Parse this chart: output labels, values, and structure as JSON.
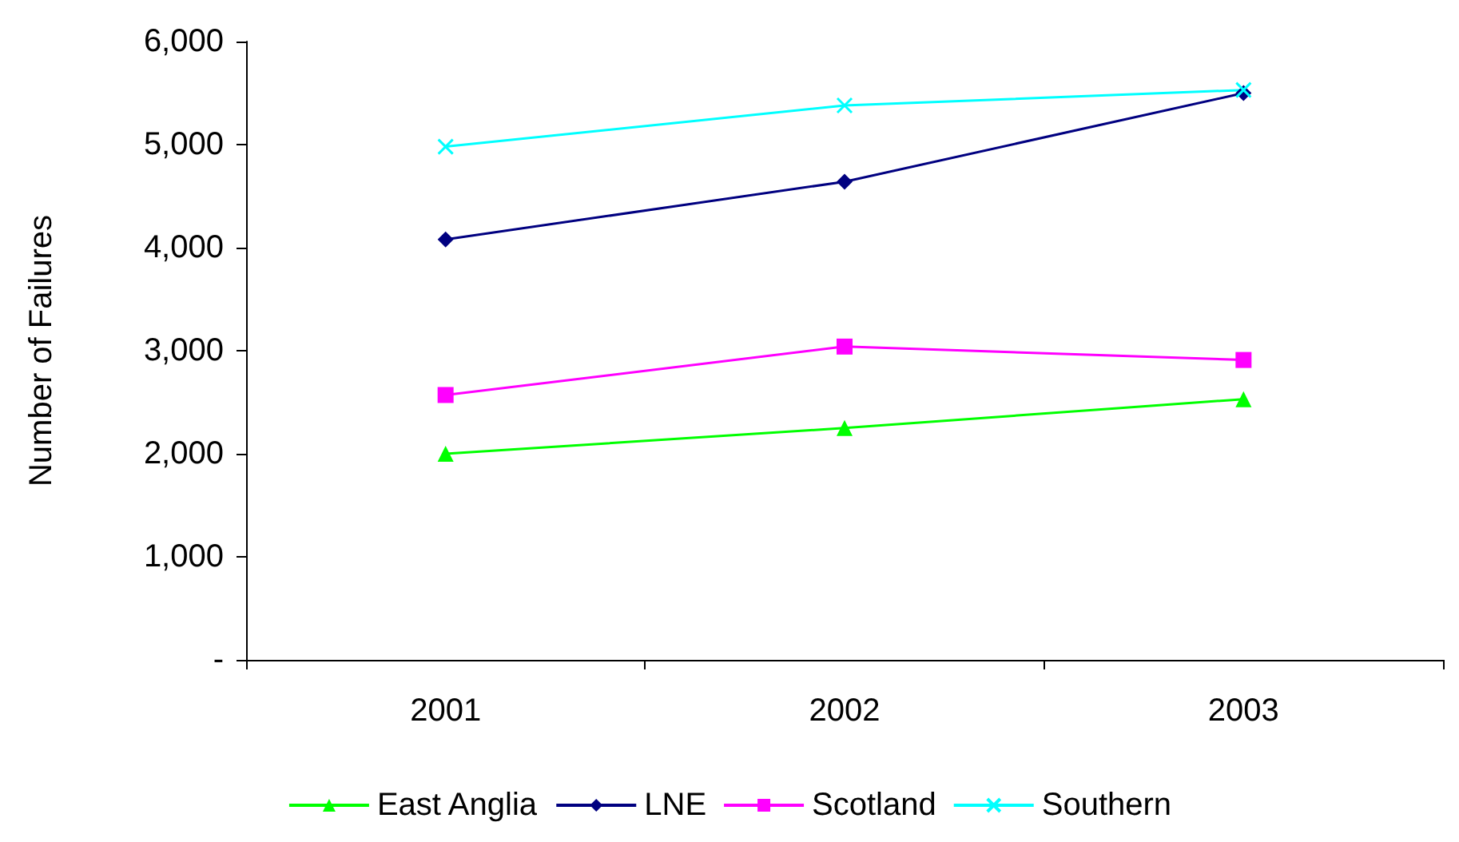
{
  "chart_data": {
    "type": "line",
    "ylabel": "Number of Failures",
    "categories": [
      "2001",
      "2002",
      "2003"
    ],
    "series": [
      {
        "name": "East Anglia",
        "color": "#00ff00",
        "marker": "triangle",
        "values": [
          2000,
          2250,
          2530
        ]
      },
      {
        "name": "LNE",
        "color": "#000080",
        "marker": "diamond",
        "values": [
          4080,
          4640,
          5500
        ]
      },
      {
        "name": "Scotland",
        "color": "#ff00ff",
        "marker": "square",
        "values": [
          2570,
          3040,
          2910
        ]
      },
      {
        "name": "Southern",
        "color": "#00ffff",
        "marker": "cross",
        "values": [
          4980,
          5380,
          5530
        ]
      }
    ],
    "ylim": [
      0,
      6000
    ],
    "yticks": [
      {
        "value": 0,
        "label": "-"
      },
      {
        "value": 1000,
        "label": "1,000"
      },
      {
        "value": 2000,
        "label": "2,000"
      },
      {
        "value": 3000,
        "label": "3,000"
      },
      {
        "value": 4000,
        "label": "4,000"
      },
      {
        "value": 5000,
        "label": "5,000"
      },
      {
        "value": 6000,
        "label": "6,000"
      }
    ],
    "grid": false,
    "legend": "bottom"
  }
}
